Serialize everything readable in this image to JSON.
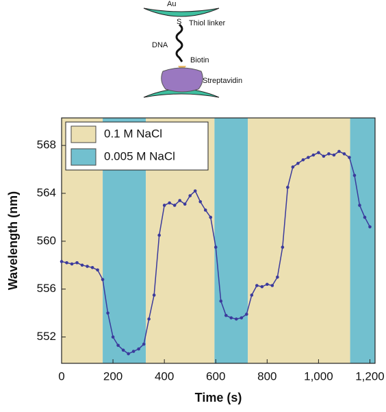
{
  "diagram": {
    "labels": {
      "top": "Au",
      "thiol": "Thiol linker",
      "sulfur": "S",
      "dna": "DNA",
      "biotin": "Biotin",
      "streptavidin": "Streptavidin"
    }
  },
  "chart_data": {
    "type": "line",
    "xlabel": "Time (s)",
    "ylabel": "Wavelength (nm)",
    "xlim": [
      0,
      1220
    ],
    "ylim": [
      549.8,
      570.3
    ],
    "xticks": [
      0,
      200,
      400,
      600,
      800,
      {
        "value": 1000,
        "label": "1,000"
      },
      {
        "value": 1200,
        "label": "1,200"
      }
    ],
    "yticks": [
      552,
      556,
      560,
      564,
      568
    ],
    "regions": [
      {
        "start": 0,
        "end": 160,
        "series": 0
      },
      {
        "start": 160,
        "end": 328,
        "series": 1
      },
      {
        "start": 328,
        "end": 595,
        "series": 0
      },
      {
        "start": 595,
        "end": 725,
        "series": 1
      },
      {
        "start": 725,
        "end": 1123,
        "series": 0
      },
      {
        "start": 1123,
        "end": 1220,
        "series": 1
      }
    ],
    "legend": [
      {
        "name": "0.1 M NaCl",
        "color": "#ece0b2"
      },
      {
        "name": "0.005 M NaCl",
        "color": "#72c0cf"
      }
    ],
    "legend_position": "upper left",
    "line_color": "#3b3a9c",
    "x": [
      0,
      20,
      40,
      60,
      80,
      100,
      120,
      140,
      160,
      180,
      200,
      220,
      240,
      260,
      280,
      300,
      320,
      340,
      360,
      380,
      400,
      420,
      440,
      460,
      480,
      500,
      520,
      540,
      560,
      580,
      600,
      620,
      640,
      660,
      680,
      700,
      720,
      740,
      760,
      780,
      800,
      820,
      840,
      860,
      880,
      900,
      920,
      940,
      960,
      980,
      1000,
      1020,
      1040,
      1060,
      1080,
      1100,
      1120,
      1140,
      1160,
      1180,
      1200
    ],
    "values": [
      558.3,
      558.2,
      558.1,
      558.2,
      558.0,
      557.9,
      557.8,
      557.6,
      556.8,
      554.0,
      552.0,
      551.3,
      550.9,
      550.6,
      550.8,
      551.0,
      551.4,
      553.5,
      555.5,
      560.5,
      563.0,
      563.2,
      563.0,
      563.4,
      563.1,
      563.8,
      564.2,
      563.3,
      562.6,
      562.0,
      559.5,
      555.0,
      553.8,
      553.6,
      553.5,
      553.6,
      553.9,
      555.5,
      556.3,
      556.2,
      556.4,
      556.3,
      557.0,
      559.5,
      564.5,
      566.2,
      566.5,
      566.8,
      567.0,
      567.2,
      567.4,
      567.1,
      567.3,
      567.2,
      567.5,
      567.3,
      567.0,
      565.5,
      563.0,
      562.0,
      561.2
    ]
  }
}
